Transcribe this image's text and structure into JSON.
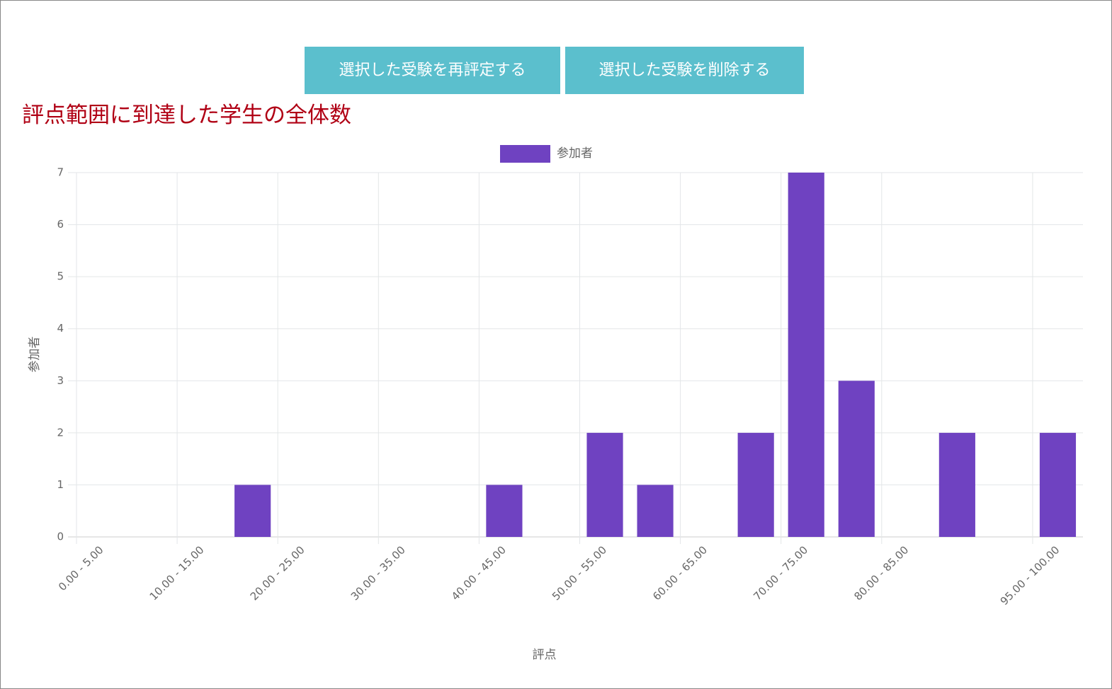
{
  "buttons": [
    "選択した受験を再評定する",
    "選択した受験を削除する"
  ],
  "heading": "評点範囲に到達した学生の全体数",
  "chart_data": {
    "type": "bar",
    "categories": [
      "0.00 - 5.00",
      null,
      "10.00 - 15.00",
      null,
      "20.00 - 25.00",
      null,
      "30.00 - 35.00",
      null,
      "40.00 - 45.00",
      null,
      "50.00 - 55.00",
      null,
      "60.00 - 65.00",
      null,
      "70.00 - 75.00",
      null,
      "80.00 - 85.00",
      null,
      null,
      "95.00 - 100.00"
    ],
    "series": [
      {
        "name": "参加者",
        "color": "#6f42c1",
        "values": [
          0,
          0,
          0,
          1,
          0,
          0,
          0,
          0,
          1,
          0,
          2,
          1,
          0,
          2,
          7,
          3,
          0,
          2,
          0,
          2
        ]
      }
    ],
    "ylim": [
      0,
      7
    ],
    "yticks": [
      0,
      1,
      2,
      3,
      4,
      5,
      6,
      7
    ],
    "xlabel": "評点",
    "ylabel": "参加者",
    "grid": true,
    "legend": "top"
  }
}
